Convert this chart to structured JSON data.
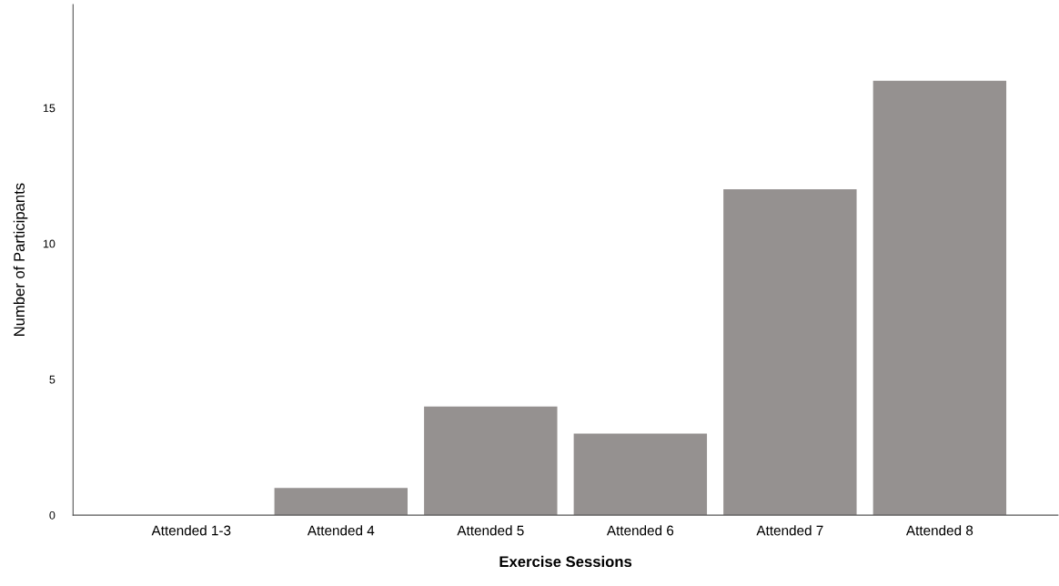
{
  "chart_data": {
    "type": "bar",
    "xlabel": "Exercise Sessions",
    "ylabel": "Number of Participants",
    "categories": [
      "Attended 1-3",
      "Attended 4",
      "Attended 5",
      "Attended 6",
      "Attended 7",
      "Attended 8"
    ],
    "values": [
      0,
      1,
      4,
      3,
      12,
      16
    ],
    "color": "#959190",
    "ylim": [
      0,
      18.8
    ],
    "yticks": [
      0,
      5,
      10,
      15
    ],
    "grid": false,
    "legend": false
  }
}
